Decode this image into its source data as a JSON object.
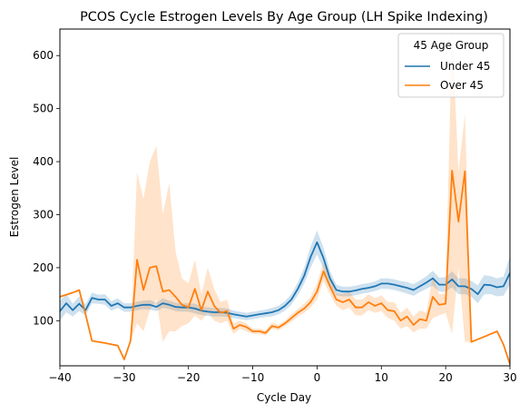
{
  "chart_data": {
    "type": "line",
    "title": "PCOS Cycle Estrogen Levels By Age Group (LH Spike Indexing)",
    "xlabel": "Cycle Day",
    "ylabel": "Estrogen Level",
    "xlim": [
      -40,
      30
    ],
    "ylim": [
      15,
      650
    ],
    "xticks": [
      -40,
      -30,
      -20,
      -10,
      0,
      10,
      20,
      30
    ],
    "yticks": [
      100,
      200,
      300,
      400,
      500,
      600
    ],
    "grid": false,
    "legend": {
      "title": "45 Age Group",
      "placement": "top-right"
    },
    "series": [
      {
        "name": "Under 45",
        "color": "#1f77b4",
        "x": [
          -40,
          -39,
          -38,
          -37,
          -36,
          -35,
          -34,
          -33,
          -32,
          -31,
          -30,
          -29,
          -28,
          -27,
          -26,
          -25,
          -24,
          -23,
          -22,
          -21,
          -20,
          -19,
          -18,
          -17,
          -16,
          -15,
          -14,
          -13,
          -12,
          -11,
          -10,
          -9,
          -8,
          -7,
          -6,
          -5,
          -4,
          -3,
          -2,
          -1,
          0,
          1,
          2,
          3,
          4,
          5,
          6,
          7,
          8,
          9,
          10,
          11,
          12,
          13,
          14,
          15,
          16,
          17,
          18,
          19,
          20,
          21,
          22,
          23,
          24,
          25,
          26,
          27,
          28,
          29,
          30
        ],
        "y": [
          118,
          133,
          120,
          132,
          120,
          143,
          140,
          140,
          128,
          133,
          125,
          125,
          128,
          130,
          130,
          126,
          133,
          130,
          126,
          125,
          125,
          123,
          119,
          117,
          116,
          116,
          115,
          112,
          110,
          108,
          110,
          112,
          114,
          116,
          120,
          128,
          140,
          160,
          185,
          220,
          248,
          218,
          180,
          158,
          155,
          155,
          157,
          160,
          162,
          165,
          170,
          170,
          168,
          165,
          162,
          158,
          165,
          172,
          180,
          168,
          168,
          178,
          165,
          165,
          160,
          150,
          168,
          167,
          163,
          165,
          190
        ],
        "lower": [
          100,
          116,
          108,
          118,
          110,
          133,
          132,
          130,
          119,
          124,
          117,
          117,
          120,
          122,
          121,
          118,
          124,
          122,
          118,
          117,
          117,
          114,
          111,
          109,
          108,
          108,
          107,
          105,
          103,
          101,
          103,
          105,
          107,
          108,
          112,
          119,
          130,
          148,
          170,
          200,
          225,
          198,
          166,
          148,
          146,
          146,
          148,
          151,
          153,
          156,
          160,
          160,
          158,
          155,
          151,
          147,
          154,
          160,
          166,
          155,
          154,
          163,
          150,
          150,
          145,
          133,
          150,
          150,
          146,
          147,
          168
        ],
        "upper": [
          137,
          150,
          132,
          146,
          131,
          153,
          149,
          150,
          137,
          142,
          133,
          133,
          136,
          138,
          139,
          134,
          142,
          138,
          134,
          133,
          133,
          132,
          127,
          125,
          124,
          124,
          123,
          119,
          117,
          115,
          117,
          119,
          121,
          124,
          128,
          137,
          150,
          172,
          200,
          240,
          270,
          238,
          194,
          168,
          164,
          164,
          166,
          169,
          171,
          174,
          180,
          180,
          178,
          175,
          173,
          169,
          176,
          184,
          194,
          181,
          182,
          193,
          180,
          180,
          175,
          167,
          186,
          184,
          180,
          183,
          222
        ]
      },
      {
        "name": "Over 45",
        "color": "#ff7f0e",
        "x": [
          -40,
          -38,
          -37,
          -36,
          -35,
          -33,
          -31,
          -30,
          -29,
          -28,
          -27,
          -26,
          -25,
          -24,
          -23,
          -22,
          -21,
          -20,
          -19,
          -18,
          -17,
          -16,
          -15,
          -14,
          -13,
          -12,
          -11,
          -10,
          -9,
          -8,
          -7,
          -6,
          -5,
          -4,
          -3,
          -2,
          -1,
          0,
          1,
          2,
          3,
          4,
          5,
          6,
          7,
          8,
          9,
          10,
          11,
          12,
          13,
          14,
          15,
          16,
          17,
          18,
          19,
          20,
          21,
          22,
          23,
          24,
          25,
          26,
          27,
          28,
          29,
          30
        ],
        "y": [
          145,
          153,
          158,
          112,
          62,
          58,
          53,
          27,
          62,
          215,
          158,
          200,
          203,
          155,
          158,
          145,
          130,
          125,
          160,
          120,
          155,
          128,
          115,
          118,
          85,
          92,
          88,
          80,
          80,
          77,
          90,
          87,
          95,
          105,
          115,
          123,
          135,
          155,
          193,
          165,
          140,
          135,
          140,
          125,
          125,
          135,
          128,
          133,
          120,
          118,
          100,
          108,
          92,
          103,
          100,
          145,
          130,
          132,
          383,
          287,
          382,
          60,
          65,
          70,
          75,
          80,
          55,
          18
        ],
        "lower": [
          145,
          153,
          158,
          112,
          62,
          58,
          53,
          27,
          62,
          95,
          80,
          120,
          140,
          60,
          80,
          80,
          90,
          95,
          110,
          100,
          115,
          100,
          95,
          100,
          75,
          85,
          80,
          75,
          75,
          72,
          85,
          82,
          90,
          98,
          108,
          115,
          125,
          140,
          175,
          150,
          128,
          120,
          125,
          110,
          110,
          120,
          115,
          118,
          105,
          100,
          85,
          90,
          78,
          85,
          85,
          105,
          110,
          115,
          75,
          200,
          60,
          60,
          65,
          70,
          75,
          80,
          55,
          18
        ],
        "upper": [
          145,
          153,
          158,
          112,
          62,
          58,
          53,
          27,
          62,
          380,
          330,
          400,
          430,
          300,
          360,
          230,
          180,
          170,
          215,
          150,
          200,
          160,
          135,
          140,
          95,
          100,
          95,
          85,
          85,
          82,
          97,
          92,
          100,
          112,
          122,
          132,
          145,
          170,
          210,
          180,
          152,
          150,
          155,
          140,
          140,
          150,
          142,
          148,
          135,
          135,
          115,
          125,
          108,
          120,
          115,
          185,
          150,
          150,
          650,
          380,
          490,
          60,
          65,
          70,
          75,
          80,
          55,
          18
        ]
      }
    ]
  }
}
